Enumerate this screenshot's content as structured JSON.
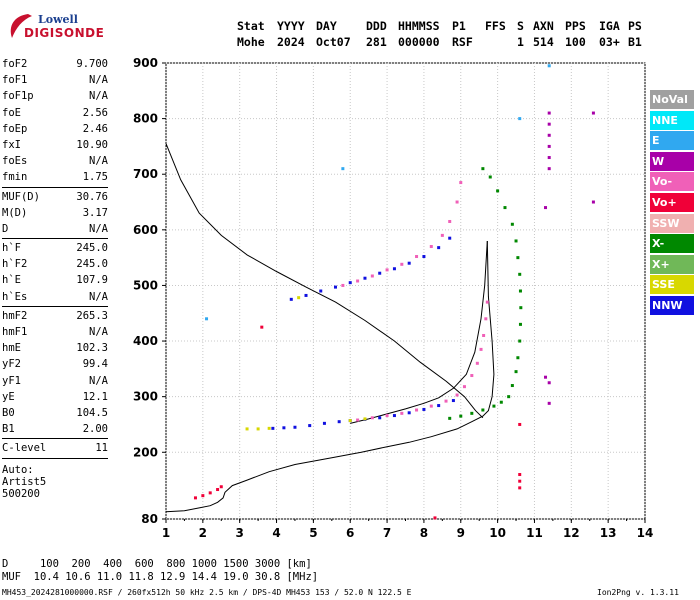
{
  "logo": {
    "line1": "Lowell",
    "line2": "DIGISONDE"
  },
  "header": {
    "labels": [
      "Stat",
      "YYYY",
      "DAY",
      "DDD",
      "HHMMSS",
      "P1",
      "FFS",
      "S",
      "AXN",
      "PPS",
      "IGA",
      "PS"
    ],
    "values": [
      "Mohe",
      "2024",
      "Oct07",
      "281",
      "000000",
      "RSF",
      "",
      "1",
      "514",
      "100",
      "03+",
      "B1"
    ]
  },
  "params": [
    {
      "label": "foF2",
      "value": "9.700"
    },
    {
      "label": "foF1",
      "value": "N/A"
    },
    {
      "label": "foF1p",
      "value": "N/A"
    },
    {
      "label": "foE",
      "value": "2.56"
    },
    {
      "label": "foEp",
      "value": "2.46"
    },
    {
      "label": "fxI",
      "value": "10.90"
    },
    {
      "label": "foEs",
      "value": "N/A"
    },
    {
      "label": "fmin",
      "value": "1.75"
    },
    {
      "sep": true
    },
    {
      "label": "MUF(D)",
      "value": "30.76"
    },
    {
      "label": "M(D)",
      "value": "3.17"
    },
    {
      "label": "D",
      "value": "N/A"
    },
    {
      "sep": true
    },
    {
      "label": "h`F",
      "value": "245.0"
    },
    {
      "label": "h`F2",
      "value": "245.0"
    },
    {
      "label": "h`E",
      "value": "107.9"
    },
    {
      "label": "h`Es",
      "value": "N/A"
    },
    {
      "sep": true
    },
    {
      "label": "hmF2",
      "value": "265.3"
    },
    {
      "label": "hmF1",
      "value": "N/A"
    },
    {
      "label": "hmE",
      "value": "102.3"
    },
    {
      "label": "yF2",
      "value": "99.4"
    },
    {
      "label": "yF1",
      "value": "N/A"
    },
    {
      "label": "yE",
      "value": "12.1"
    },
    {
      "label": "B0",
      "value": "104.5"
    },
    {
      "label": "B1",
      "value": "2.00"
    },
    {
      "sep": true
    },
    {
      "label": "C-level",
      "value": "11"
    },
    {
      "sep": true
    }
  ],
  "auto": {
    "label": "Auto:",
    "system": "Artist5",
    "version": "500200"
  },
  "legend": [
    {
      "label": "NoVal",
      "color": "#a0a0a0"
    },
    {
      "label": "NNE",
      "color": "#00e8f8"
    },
    {
      "label": "E",
      "color": "#30a8f0"
    },
    {
      "label": "W",
      "color": "#a800a8"
    },
    {
      "label": "Vo-",
      "color": "#f060b8"
    },
    {
      "label": "Vo+",
      "color": "#f00038"
    },
    {
      "label": "SSW",
      "color": "#f0b0b0"
    },
    {
      "label": "X-",
      "color": "#008800"
    },
    {
      "label": "X+",
      "color": "#70b858"
    },
    {
      "label": "SSE",
      "color": "#d8d800"
    },
    {
      "label": "NNW",
      "color": "#1010e0"
    }
  ],
  "muf_table": {
    "d_label": "D",
    "d_values": "100  200  400  600  800 1000 1500 3000 [km]",
    "muf_label": "MUF",
    "muf_values": "10.4 10.6 11.0 11.8 12.9 14.4 19.0 30.8 [MHz]"
  },
  "footer": {
    "left": "MH453_2024281000000.RSF / 260fx512h 50 kHz 2.5 km / DPS-4D MH453 153 / 52.0 N 122.5 E",
    "right": "Ion2Png v. 1.3.11"
  },
  "chart_data": {
    "type": "scatter",
    "x_ticks": [
      1,
      2,
      3,
      4,
      5,
      6,
      7,
      8,
      9,
      10,
      11,
      12,
      13,
      14
    ],
    "y_ticks": [
      80,
      200,
      300,
      400,
      500,
      600,
      700,
      800,
      900
    ],
    "xlim": [
      1,
      14
    ],
    "ylim": [
      80,
      900
    ],
    "grid": true,
    "profile_line": [
      [
        9.72,
        580
      ],
      [
        9.65,
        500
      ],
      [
        9.55,
        440
      ],
      [
        9.38,
        380
      ],
      [
        9.15,
        340
      ],
      [
        8.8,
        315
      ],
      [
        8.4,
        298
      ],
      [
        8.0,
        288
      ],
      [
        7.5,
        278
      ],
      [
        7.0,
        269
      ],
      [
        6.5,
        260
      ],
      [
        6.0,
        252
      ]
    ],
    "profile_line2": [
      [
        9.72,
        580
      ],
      [
        9.75,
        480
      ],
      [
        9.85,
        400
      ],
      [
        9.9,
        340
      ],
      [
        9.85,
        300
      ],
      [
        9.75,
        275
      ],
      [
        9.6,
        265
      ],
      [
        9.3,
        255
      ],
      [
        8.9,
        242
      ],
      [
        8.2,
        228
      ],
      [
        7.6,
        218
      ],
      [
        7.0,
        210
      ],
      [
        6.3,
        200
      ],
      [
        5.5,
        190
      ],
      [
        4.5,
        178
      ],
      [
        3.8,
        165
      ],
      [
        3.2,
        150
      ],
      [
        2.8,
        140
      ],
      [
        2.6,
        128
      ],
      [
        2.55,
        118
      ],
      [
        2.4,
        110
      ],
      [
        2.2,
        104
      ],
      [
        1.9,
        100
      ],
      [
        1.5,
        95
      ],
      [
        1.0,
        93
      ]
    ],
    "profile_line3": [
      [
        1.0,
        755
      ],
      [
        1.4,
        690
      ],
      [
        1.9,
        630
      ],
      [
        2.5,
        590
      ],
      [
        3.2,
        555
      ],
      [
        4.0,
        525
      ],
      [
        4.8,
        497
      ],
      [
        5.6,
        470
      ],
      [
        6.4,
        437
      ],
      [
        7.2,
        400
      ],
      [
        7.9,
        362
      ],
      [
        8.6,
        328
      ],
      [
        9.1,
        300
      ],
      [
        9.4,
        275
      ],
      [
        9.6,
        262
      ]
    ],
    "series": [
      {
        "name": "X-",
        "color": "#008800",
        "points": [
          [
            10.4,
            320
          ],
          [
            10.5,
            345
          ],
          [
            10.55,
            370
          ],
          [
            10.6,
            400
          ],
          [
            10.62,
            430
          ],
          [
            10.63,
            460
          ],
          [
            10.62,
            490
          ],
          [
            10.6,
            520
          ],
          [
            10.55,
            550
          ],
          [
            10.5,
            580
          ],
          [
            10.4,
            610
          ],
          [
            10.2,
            640
          ],
          [
            10.0,
            670
          ],
          [
            9.8,
            695
          ],
          [
            9.6,
            710
          ],
          [
            10.3,
            300
          ],
          [
            10.1,
            290
          ],
          [
            9.9,
            283
          ],
          [
            9.6,
            276
          ],
          [
            9.3,
            270
          ],
          [
            9.0,
            265
          ],
          [
            8.7,
            261
          ]
        ]
      },
      {
        "name": "NNW",
        "color": "#1010e0",
        "points": [
          [
            3.9,
            243
          ],
          [
            4.2,
            244
          ],
          [
            4.5,
            245
          ],
          [
            4.9,
            248
          ],
          [
            5.3,
            252
          ],
          [
            5.7,
            255
          ],
          [
            6.0,
            257
          ],
          [
            6.4,
            259
          ],
          [
            6.8,
            262
          ],
          [
            7.2,
            266
          ],
          [
            7.6,
            271
          ],
          [
            8.0,
            277
          ],
          [
            8.4,
            284
          ],
          [
            8.8,
            293
          ],
          [
            4.4,
            475
          ],
          [
            4.8,
            482
          ],
          [
            5.2,
            490
          ],
          [
            5.6,
            497
          ],
          [
            6.0,
            505
          ],
          [
            6.4,
            513
          ],
          [
            6.8,
            522
          ],
          [
            7.2,
            530
          ],
          [
            7.6,
            540
          ],
          [
            8.0,
            552
          ],
          [
            8.4,
            568
          ],
          [
            8.7,
            585
          ]
        ]
      },
      {
        "name": "Vo-",
        "color": "#f060b8",
        "points": [
          [
            6.2,
            258
          ],
          [
            6.6,
            262
          ],
          [
            7.0,
            266
          ],
          [
            7.4,
            270
          ],
          [
            7.8,
            276
          ],
          [
            8.2,
            283
          ],
          [
            8.6,
            292
          ],
          [
            8.9,
            303
          ],
          [
            9.1,
            318
          ],
          [
            9.3,
            338
          ],
          [
            9.45,
            360
          ],
          [
            9.55,
            385
          ],
          [
            9.62,
            410
          ],
          [
            9.68,
            440
          ],
          [
            9.72,
            470
          ],
          [
            5.8,
            500
          ],
          [
            6.2,
            508
          ],
          [
            6.6,
            517
          ],
          [
            7.0,
            528
          ],
          [
            7.4,
            538
          ],
          [
            7.8,
            552
          ],
          [
            8.2,
            570
          ],
          [
            8.5,
            590
          ],
          [
            8.7,
            615
          ],
          [
            8.9,
            650
          ],
          [
            9.0,
            685
          ]
        ]
      },
      {
        "name": "SSE",
        "color": "#d8d800",
        "points": [
          [
            3.2,
            242
          ],
          [
            3.5,
            242
          ],
          [
            3.8,
            243
          ],
          [
            4.6,
            478
          ],
          [
            6.0,
            257
          ],
          [
            6.4,
            260
          ]
        ]
      },
      {
        "name": "Vo+",
        "color": "#f00038",
        "points": [
          [
            1.8,
            118
          ],
          [
            2.0,
            122
          ],
          [
            2.2,
            127
          ],
          [
            2.4,
            133
          ],
          [
            2.5,
            138
          ],
          [
            10.6,
            160
          ],
          [
            10.6,
            148
          ],
          [
            10.6,
            136
          ],
          [
            10.6,
            250
          ],
          [
            8.3,
            82
          ],
          [
            3.6,
            425
          ]
        ]
      },
      {
        "name": "W",
        "color": "#a800a8",
        "points": [
          [
            11.4,
            810
          ],
          [
            11.4,
            790
          ],
          [
            11.4,
            770
          ],
          [
            11.4,
            750
          ],
          [
            11.4,
            730
          ],
          [
            11.4,
            710
          ],
          [
            12.6,
            810
          ],
          [
            12.6,
            650
          ],
          [
            11.3,
            640
          ],
          [
            11.3,
            335
          ],
          [
            11.4,
            325
          ],
          [
            11.4,
            288
          ]
        ]
      },
      {
        "name": "E",
        "color": "#30a8f0",
        "points": [
          [
            2.1,
            440
          ],
          [
            11.4,
            895
          ],
          [
            10.6,
            800
          ],
          [
            5.8,
            710
          ]
        ]
      }
    ]
  }
}
